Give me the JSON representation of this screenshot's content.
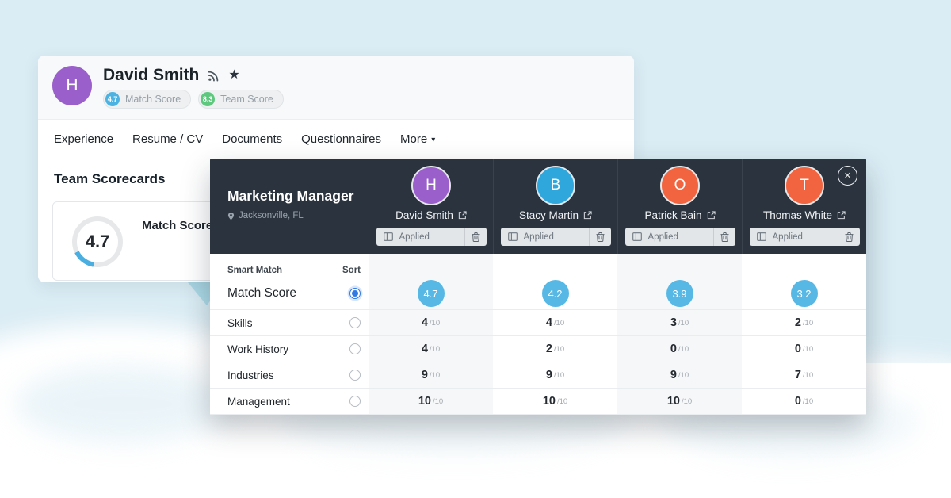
{
  "colors": {
    "background_blue": "#daecf4",
    "accent_triangle": "#aedbe8",
    "panel_dark": "#2a333e",
    "score_bubble": "#57b7e5",
    "ring_fill": "#4aaee0",
    "radio_selected": "#3079e3"
  },
  "profile_card": {
    "avatar": {
      "initial": "H",
      "color": "#9a5fcb"
    },
    "name": "David Smith",
    "badges": [
      {
        "value": "4.7",
        "label": "Match Score",
        "color": "#4cb2e2"
      },
      {
        "value": "8.3",
        "label": "Team Score",
        "color": "#5ec97e"
      }
    ],
    "tabs": [
      {
        "label": "Experience"
      },
      {
        "label": "Resume / CV"
      },
      {
        "label": "Documents"
      },
      {
        "label": "Questionnaires"
      },
      {
        "label": "More",
        "has_caret": true
      }
    ],
    "section_title": "Team Scorecards",
    "scorecard": {
      "score": "4.7",
      "label": "Match Score"
    }
  },
  "comparison_panel": {
    "job": {
      "title": "Marketing Manager",
      "location": "Jacksonville, FL"
    },
    "close_glyph": "✕",
    "caret_glyph": "▾",
    "star_glyph": "★",
    "candidates": [
      {
        "name": "David Smith",
        "initial": "H",
        "avatar_color": "#9a5fcb",
        "stage": "Applied"
      },
      {
        "name": "Stacy Martin",
        "initial": "B",
        "avatar_color": "#2fa7dd",
        "stage": "Applied"
      },
      {
        "name": "Patrick Bain",
        "initial": "O",
        "avatar_color": "#f26440",
        "stage": "Applied"
      },
      {
        "name": "Thomas White",
        "initial": "T",
        "avatar_color": "#f26440",
        "stage": "Applied"
      }
    ],
    "table": {
      "header_left": "Smart Match",
      "header_right": "Sort",
      "denominator": "/10",
      "rows": [
        {
          "label": "Match Score",
          "display": "circle",
          "sort_selected": true,
          "values": [
            "4.7",
            "4.2",
            "3.9",
            "3.2"
          ]
        },
        {
          "label": "Skills",
          "display": "number",
          "sort_selected": false,
          "values": [
            "4",
            "4",
            "3",
            "2"
          ]
        },
        {
          "label": "Work History",
          "display": "number",
          "sort_selected": false,
          "values": [
            "4",
            "2",
            "0",
            "0"
          ]
        },
        {
          "label": "Industries",
          "display": "number",
          "sort_selected": false,
          "values": [
            "9",
            "9",
            "9",
            "7"
          ]
        },
        {
          "label": "Management",
          "display": "number",
          "sort_selected": false,
          "values": [
            "10",
            "10",
            "10",
            "0"
          ]
        }
      ]
    }
  }
}
